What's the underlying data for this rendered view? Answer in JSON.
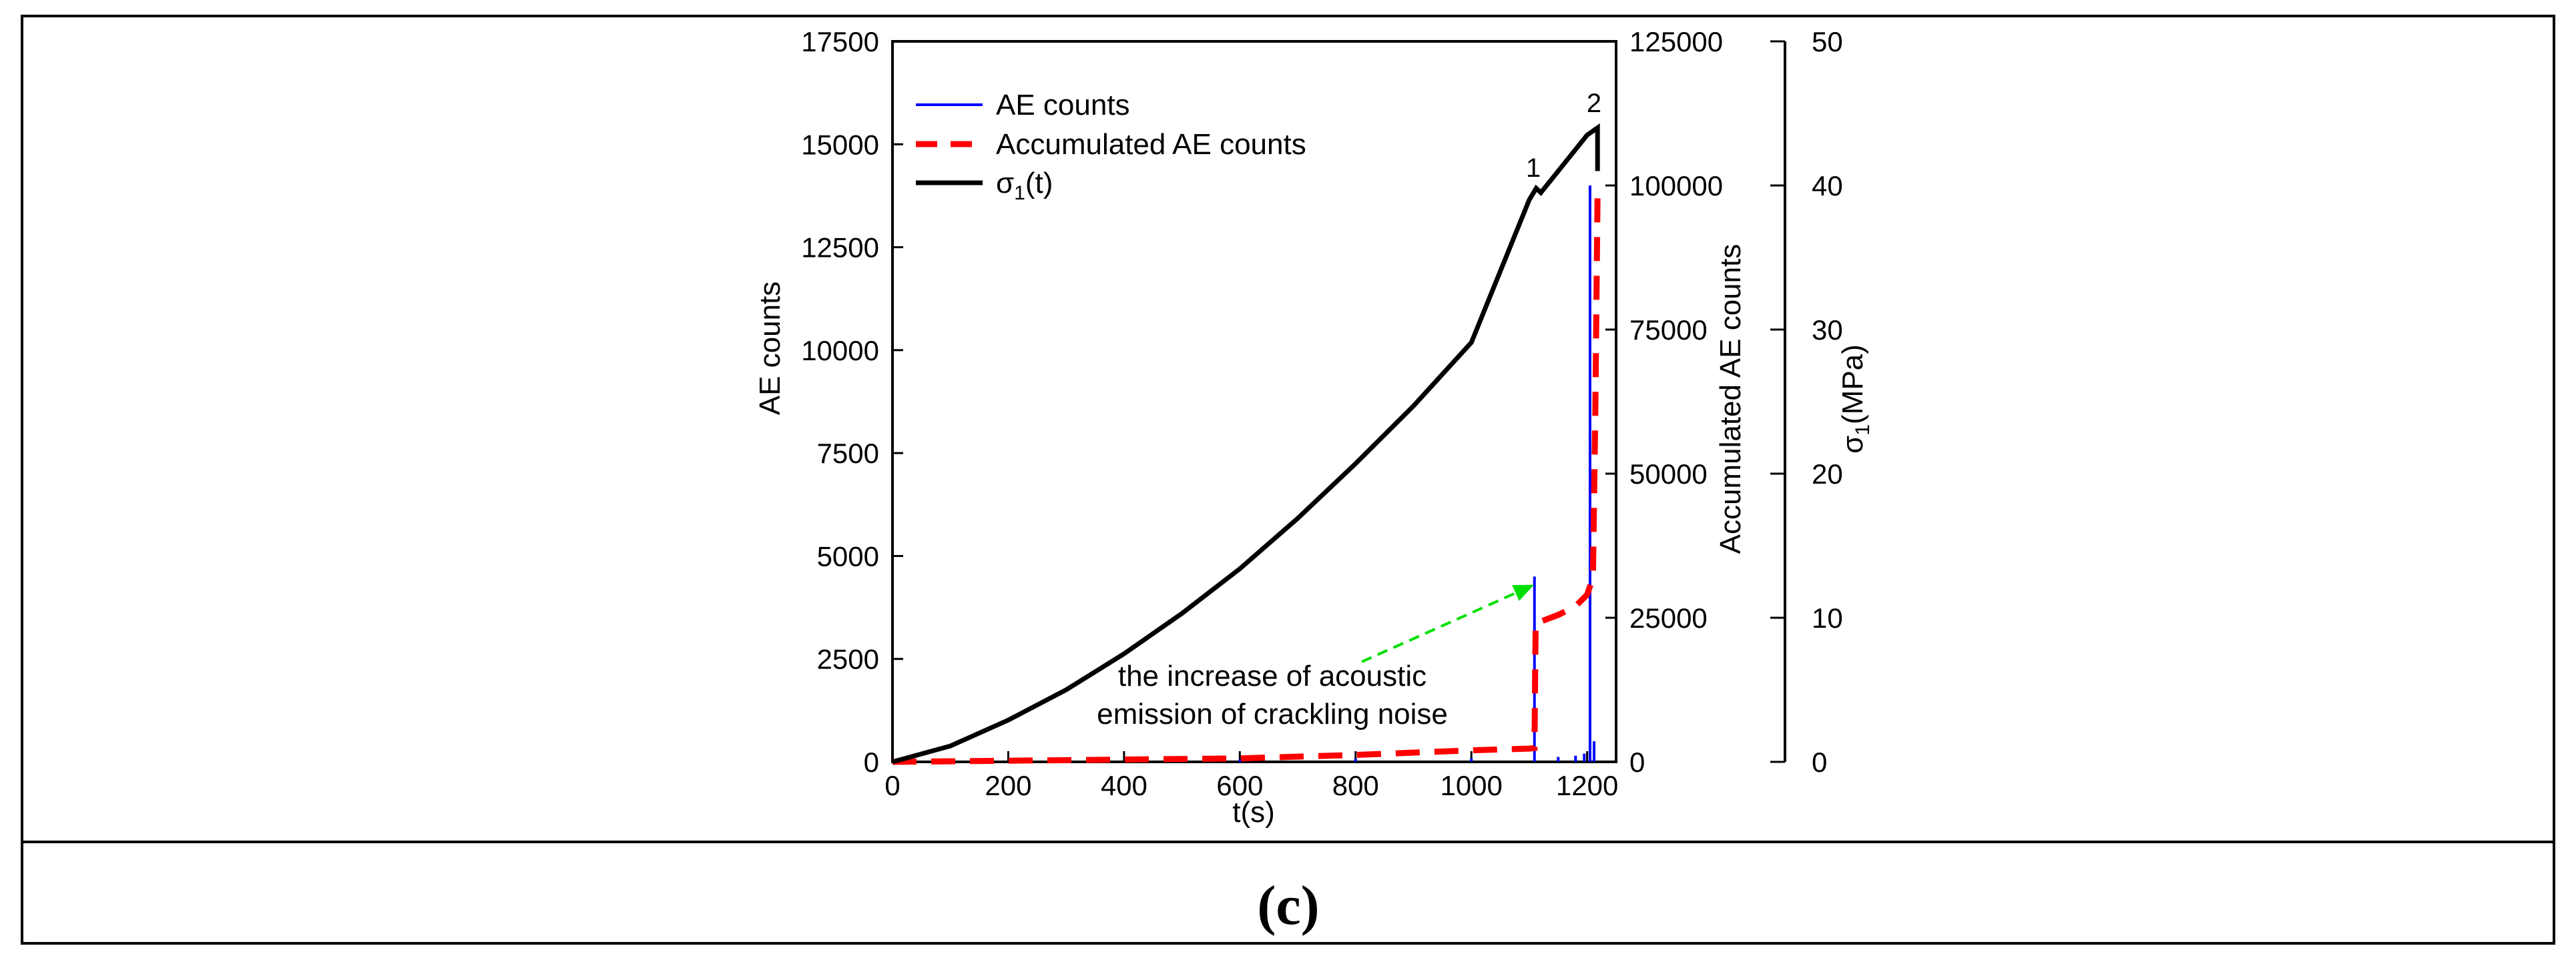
{
  "caption": "(c)",
  "chart_data": {
    "type": "line",
    "x_axis": {
      "label": "t(s)",
      "min": 0,
      "max": 1250,
      "ticks": [
        0,
        200,
        400,
        600,
        800,
        1000,
        1200
      ]
    },
    "y_left": {
      "label": "AE counts",
      "min": 0,
      "max": 17500,
      "ticks": [
        0,
        2500,
        5000,
        7500,
        10000,
        12500,
        15000,
        17500
      ]
    },
    "y_right1": {
      "label": "Accumulated AE counts",
      "min": 0,
      "max": 125000,
      "ticks": [
        0,
        25000,
        50000,
        75000,
        100000,
        125000
      ]
    },
    "y_right2": {
      "label_main": "σ",
      "label_sub": "1",
      "label_rest": "(MPa)",
      "min": 0,
      "max": 50,
      "ticks": [
        0,
        10,
        20,
        30,
        40,
        50
      ]
    },
    "legend": {
      "position": "top-left",
      "items": [
        {
          "label": "AE counts",
          "color": "#0000ff",
          "style": "solid-thin"
        },
        {
          "label": "Accumulated AE counts",
          "color": "#ff0000",
          "style": "dashed"
        },
        {
          "label_main": "σ",
          "label_sub": "1",
          "label_rest": "(t)",
          "color": "#000000",
          "style": "solid-thick"
        }
      ]
    },
    "series": [
      {
        "name": "AE counts",
        "axis": "left",
        "color": "#0000ff",
        "spikes": [
          {
            "t": 1109,
            "v": 4500
          },
          {
            "t": 1205,
            "v": 14000
          },
          {
            "t": 600,
            "v": 60
          },
          {
            "t": 800,
            "v": 80
          },
          {
            "t": 1000,
            "v": 90
          },
          {
            "t": 1150,
            "v": 120
          },
          {
            "t": 1180,
            "v": 150
          },
          {
            "t": 1195,
            "v": 200
          },
          {
            "t": 1212,
            "v": 500
          }
        ]
      },
      {
        "name": "Accumulated AE counts",
        "axis": "right1",
        "color": "#ff0000",
        "points": [
          [
            0,
            0
          ],
          [
            200,
            200
          ],
          [
            400,
            400
          ],
          [
            600,
            600
          ],
          [
            800,
            1200
          ],
          [
            1000,
            2000
          ],
          [
            1100,
            2300
          ],
          [
            1109,
            2400
          ],
          [
            1111,
            24000
          ],
          [
            1150,
            25500
          ],
          [
            1180,
            27000
          ],
          [
            1200,
            29000
          ],
          [
            1210,
            32000
          ],
          [
            1214,
            60000
          ],
          [
            1218,
            98000
          ]
        ]
      },
      {
        "name": "σ1(t)",
        "axis": "right2",
        "color": "#000000",
        "points": [
          [
            0,
            0
          ],
          [
            100,
            1.1
          ],
          [
            200,
            2.9
          ],
          [
            300,
            5.0
          ],
          [
            400,
            7.5
          ],
          [
            500,
            10.3
          ],
          [
            600,
            13.4
          ],
          [
            700,
            16.9
          ],
          [
            800,
            20.7
          ],
          [
            900,
            24.7
          ],
          [
            1000,
            29.1
          ],
          [
            1100,
            39.0
          ],
          [
            1112,
            39.8
          ],
          [
            1120,
            39.5
          ],
          [
            1150,
            41.0
          ],
          [
            1200,
            43.5
          ],
          [
            1218,
            44.0
          ],
          [
            1218,
            41.0
          ]
        ]
      }
    ],
    "annotations": [
      {
        "text": "1",
        "t": 1107,
        "y": 40.6,
        "axis": "right2"
      },
      {
        "text": "2",
        "t": 1212,
        "y": 45.1,
        "axis": "right2"
      },
      {
        "text_line1": "the increase of acoustic",
        "text_line2": "emission of  crackling noise",
        "arrow_to_t": 1108,
        "arrow_to_y": 4300,
        "arrow_color": "#00ff00"
      }
    ]
  }
}
